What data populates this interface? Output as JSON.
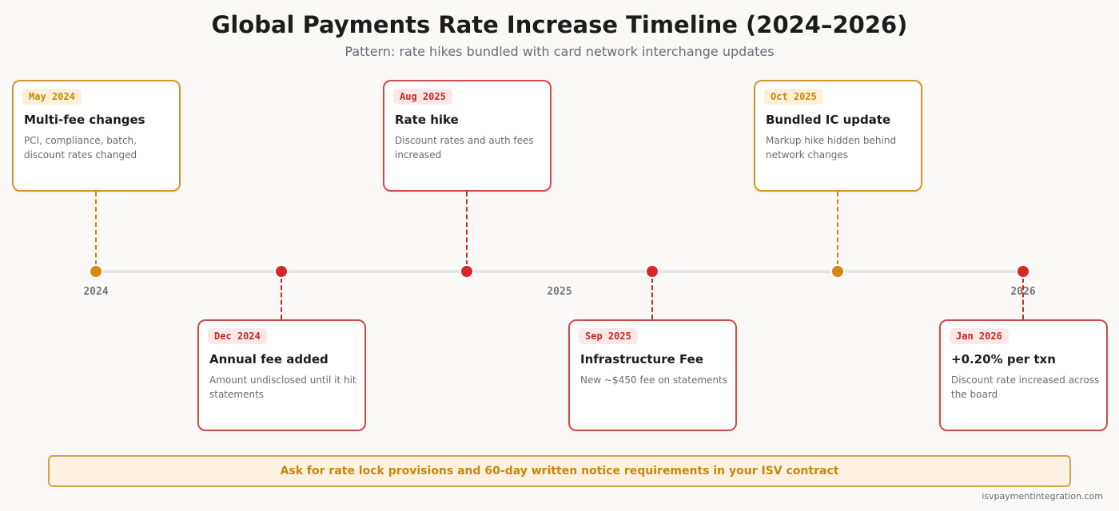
{
  "title": "Global Payments Rate Increase Timeline (2024–2026)",
  "subtitle": "Pattern: rate hikes bundled with card network interchange updates",
  "years": [
    "2024",
    "2025",
    "2026"
  ],
  "colors": {
    "amber": "#c8860a",
    "red": "#d62828",
    "axis": "#e6e6e6"
  },
  "events": [
    {
      "date": "May 2024",
      "title": "Multi-fee changes",
      "desc": "PCI, compliance, batch, discount rates changed",
      "tone": "amber",
      "position": "above"
    },
    {
      "date": "Dec 2024",
      "title": "Annual fee added",
      "desc": "Amount undisclosed until it hit statements",
      "tone": "red",
      "position": "below"
    },
    {
      "date": "Aug 2025",
      "title": "Rate hike",
      "desc": "Discount rates and auth fees increased",
      "tone": "red",
      "position": "above"
    },
    {
      "date": "Sep 2025",
      "title": "Infrastructure Fee",
      "desc": "New ~$450 fee on statements",
      "tone": "red",
      "position": "below"
    },
    {
      "date": "Oct 2025",
      "title": "Bundled IC update",
      "desc": "Markup hike hidden behind network changes",
      "tone": "amber",
      "position": "above"
    },
    {
      "date": "Jan 2026",
      "title": "+0.20% per txn",
      "desc": "Discount rate increased across the board",
      "tone": "red",
      "position": "below"
    }
  ],
  "callout": "Ask for rate lock provisions and 60-day written notice requirements in your ISV contract",
  "source": "isvpaymentintegration.com"
}
